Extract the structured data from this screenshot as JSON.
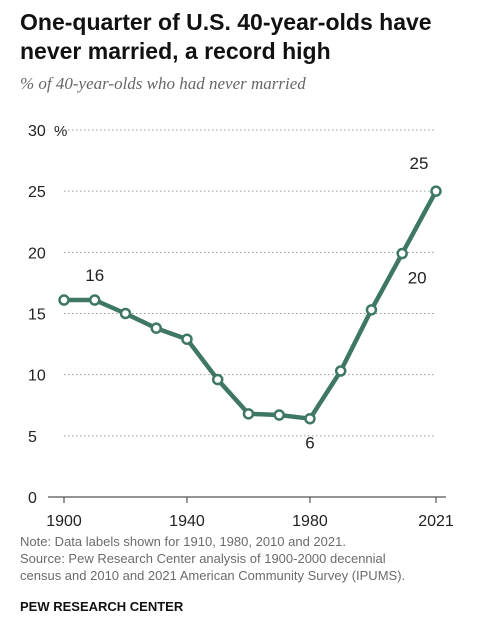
{
  "title": "One-quarter of U.S. 40-year-olds have never married, a record high",
  "subtitle": "% of 40-year-olds who had never married",
  "chart_data": {
    "type": "line",
    "x": [
      1900,
      1910,
      1920,
      1930,
      1940,
      1950,
      1960,
      1970,
      1980,
      1990,
      2000,
      2010,
      2021
    ],
    "series": [
      {
        "name": "",
        "values": [
          16.1,
          16.1,
          15.0,
          13.8,
          12.9,
          9.6,
          6.8,
          6.7,
          6.4,
          10.3,
          15.3,
          19.9,
          25.0
        ]
      }
    ],
    "data_labels": [
      {
        "x": 1910,
        "text": "16"
      },
      {
        "x": 1980,
        "text": "6"
      },
      {
        "x": 2010,
        "text": "20"
      },
      {
        "x": 2021,
        "text": "25"
      }
    ],
    "xticks": [
      "1900",
      "1940",
      "1980",
      "2021"
    ],
    "yticks": [
      "0",
      "5",
      "10",
      "15",
      "20",
      "25",
      "30"
    ],
    "y_unit": "%",
    "ylim": [
      0,
      30
    ],
    "xlim": [
      1900,
      2021
    ],
    "grid": true,
    "line_color": "#3f7766"
  },
  "note": {
    "line1": "Note: Data labels shown for 1910, 1980, 2010 and 2021.",
    "line2": "Source: Pew Research Center analysis of 1900-2000 decennial",
    "line3": "census and 2010 and 2021 American Community Survey (IPUMS)."
  },
  "brand": "PEW RESEARCH CENTER"
}
